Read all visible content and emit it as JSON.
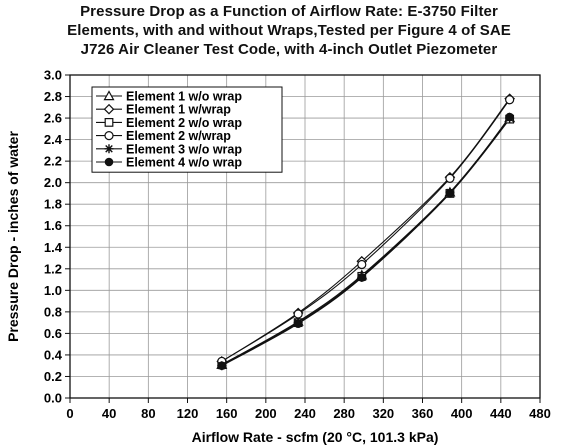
{
  "chart_data": {
    "type": "line",
    "title_lines": [
      "Pressure Drop as a Function of Airflow Rate: E-3750 Filter",
      "Elements, with and without Wraps,Tested per Figure 4 of SAE",
      "J726 Air Cleaner Test Code, with 4-inch Outlet Piezometer"
    ],
    "xlabel": "Airflow Rate - scfm (20 °C, 101.3 kPa)",
    "ylabel": "Pressure Drop - inches of water",
    "xlim": [
      0,
      480
    ],
    "ylim": [
      0,
      3.0
    ],
    "x_ticks": [
      0,
      40,
      80,
      120,
      160,
      200,
      240,
      280,
      320,
      360,
      400,
      440,
      480
    ],
    "y_ticks": [
      0.0,
      0.2,
      0.4,
      0.6,
      0.8,
      1.0,
      1.2,
      1.4,
      1.6,
      1.8,
      2.0,
      2.2,
      2.4,
      2.6,
      2.8,
      3.0
    ],
    "grid": true,
    "legend_position": "top-left",
    "series": [
      {
        "name": "Element 1 w/o wrap",
        "marker": "triangle",
        "x": [
          155,
          233,
          298,
          388,
          449
        ],
        "y": [
          0.31,
          0.71,
          1.14,
          1.91,
          2.6
        ]
      },
      {
        "name": "Element 1 w/wrap",
        "marker": "diamond",
        "x": [
          155,
          233,
          298,
          388,
          449
        ],
        "y": [
          0.34,
          0.79,
          1.27,
          2.05,
          2.78
        ]
      },
      {
        "name": "Element 2 w/o wrap",
        "marker": "square",
        "x": [
          155,
          233,
          298,
          388,
          449
        ],
        "y": [
          0.31,
          0.7,
          1.13,
          1.9,
          2.59
        ]
      },
      {
        "name": "Element 2 w/wrap",
        "marker": "circle",
        "x": [
          155,
          233,
          298,
          388,
          449
        ],
        "y": [
          0.34,
          0.78,
          1.24,
          2.04,
          2.77
        ]
      },
      {
        "name": "Element 3 w/o wrap",
        "marker": "star",
        "x": [
          155,
          233,
          298,
          388,
          449
        ],
        "y": [
          0.3,
          0.7,
          1.12,
          1.91,
          2.6
        ]
      },
      {
        "name": "Element 4 w/o wrap",
        "marker": "dot",
        "x": [
          155,
          233,
          298,
          388,
          449
        ],
        "y": [
          0.3,
          0.69,
          1.12,
          1.9,
          2.61
        ]
      }
    ]
  }
}
